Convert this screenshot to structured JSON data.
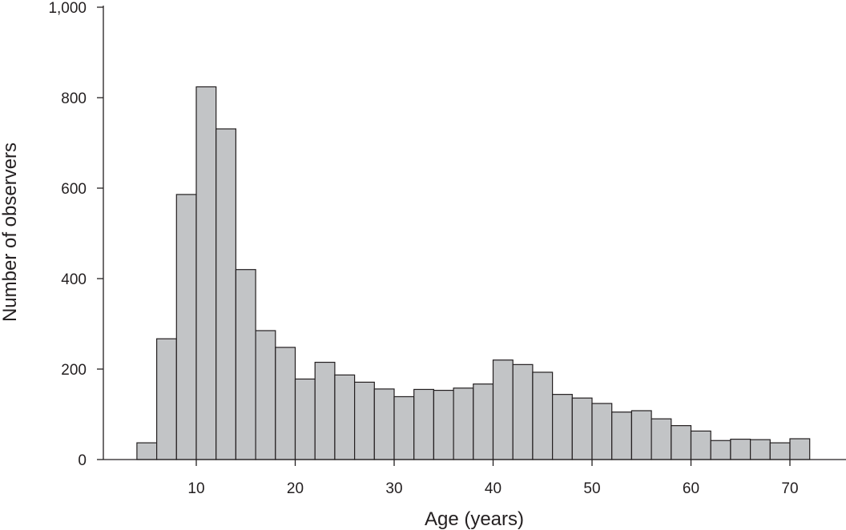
{
  "chart_data": {
    "type": "bar",
    "subtype": "histogram",
    "title": "",
    "xlabel": "Age (years)",
    "ylabel": "Number of observers",
    "xlim": [
      0,
      74
    ],
    "ylim": [
      0,
      1000
    ],
    "xticks": [
      10,
      20,
      30,
      40,
      50,
      60,
      70
    ],
    "yticks": [
      0,
      200,
      400,
      600,
      800,
      1000
    ],
    "xtick_labels": [
      "10",
      "20",
      "30",
      "40",
      "50",
      "60",
      "70"
    ],
    "ytick_labels": [
      "0",
      "200",
      "400",
      "600",
      "800",
      "1,000"
    ],
    "bin_width": 2,
    "bin_starts": [
      4,
      6,
      8,
      10,
      12,
      14,
      16,
      18,
      20,
      22,
      24,
      26,
      28,
      30,
      32,
      34,
      36,
      38,
      40,
      42,
      44,
      46,
      48,
      50,
      52,
      54,
      56,
      58,
      60,
      62,
      64,
      66,
      68,
      70
    ],
    "values": [
      37,
      267,
      586,
      824,
      731,
      420,
      285,
      248,
      178,
      215,
      187,
      171,
      156,
      139,
      155,
      153,
      158,
      167,
      220,
      210,
      193,
      144,
      136,
      124,
      105,
      108,
      90,
      75,
      63,
      42,
      45,
      44,
      37,
      46
    ],
    "bar_color": "#c2c4c6",
    "edge_color": "#231f20",
    "grid": false
  }
}
